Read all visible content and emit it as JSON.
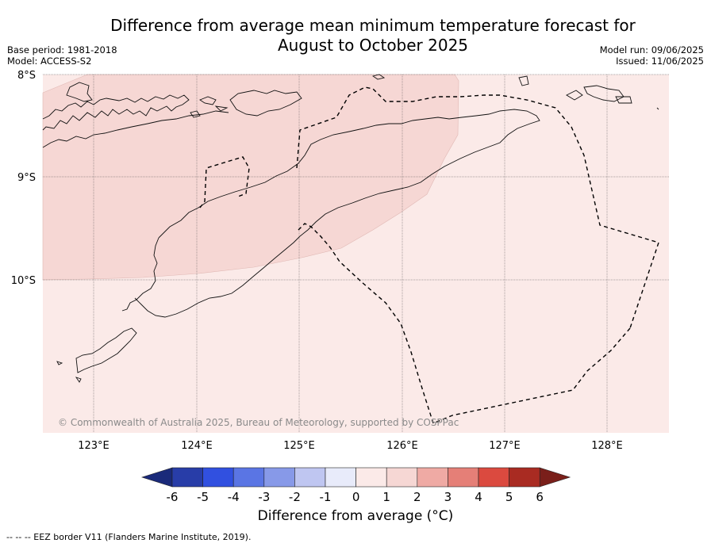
{
  "header": {
    "title_line1": "Difference from average mean minimum temperature forecast for",
    "title_line2": "August to October 2025",
    "base_period": "Base period: 1981-2018",
    "model": "Model: ACCESS-S2",
    "model_run": "Model run: 09/06/2025",
    "issued": "Issued: 11/06/2025"
  },
  "map": {
    "lat_labels": [
      "8°S",
      "9°S",
      "10°S"
    ],
    "lon_labels": [
      "123°E",
      "124°E",
      "125°E",
      "126°E",
      "127°E",
      "128°E"
    ],
    "lon_range": [
      122.5,
      128.6
    ],
    "lat_range": [
      -11.5,
      -8.0
    ],
    "copyright": "© Commonwealth of Australia 2025, Bureau of Meteorology, supported by COSPPac",
    "regions": [
      {
        "name": "0 to 1",
        "color": "#fbeae8"
      },
      {
        "name": "1 to 2",
        "color": "#f6d7d4"
      }
    ]
  },
  "colorbar": {
    "ticks": [
      "-6",
      "-5",
      "-4",
      "-3",
      "-2",
      "-1",
      "0",
      "1",
      "2",
      "3",
      "4",
      "5",
      "6"
    ],
    "colors": [
      "#283da8",
      "#3150e0",
      "#5a75e4",
      "#8799e8",
      "#bfc6f1",
      "#e8ebfa",
      "#fbeae8",
      "#f6d7d4",
      "#efaaa4",
      "#e57f77",
      "#db4a3f",
      "#a92b22"
    ],
    "under_color": "#1a2a7a",
    "over_color": "#7a1f1a",
    "label": "Difference from average (°C)"
  },
  "footnote": "--  --  -- EEZ border V11 (Flanders Marine Institute, 2019)."
}
